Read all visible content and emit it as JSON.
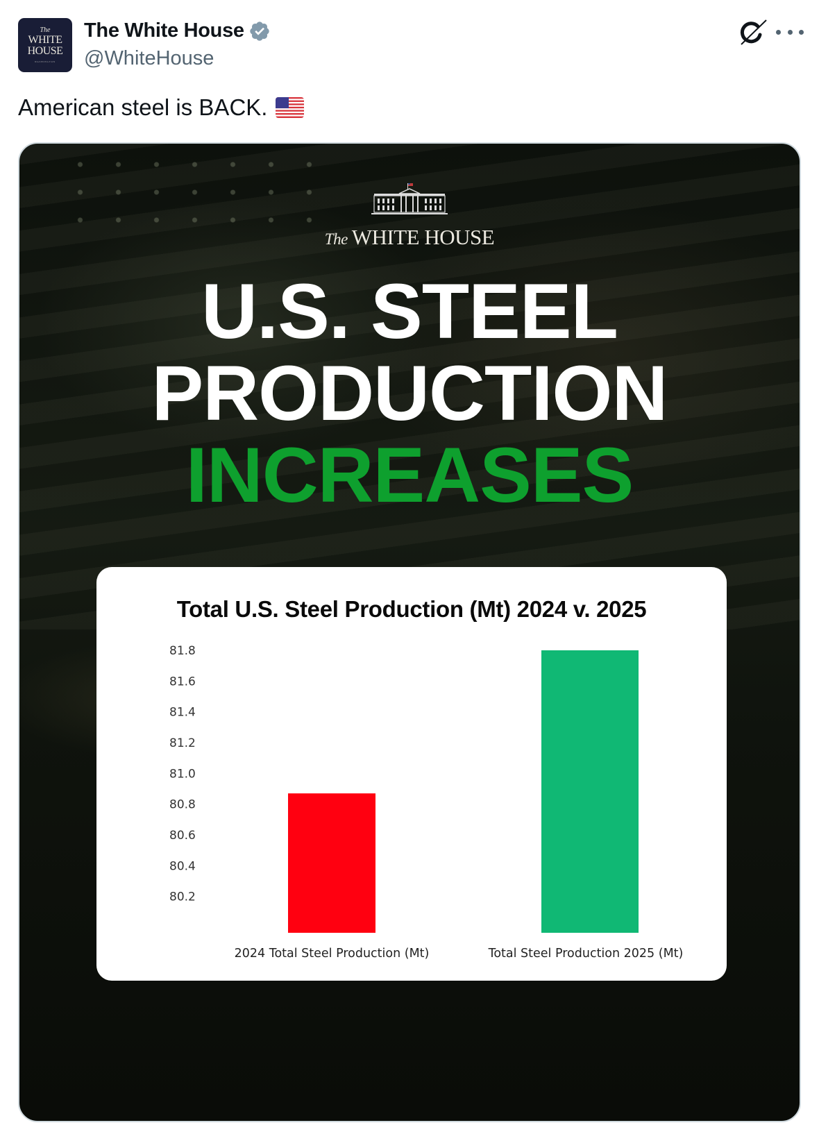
{
  "post": {
    "author_name": "The White House",
    "handle": "@WhiteHouse",
    "verified": true,
    "avatar": {
      "line1": "The",
      "line2": "WHITE",
      "line3": "HOUSE",
      "line4": "WASHINGTON"
    },
    "text": "American steel is BACK.",
    "emoji": "us-flag",
    "actions": {
      "grok_icon": "grok-icon",
      "more_icon": "more-dots-icon"
    }
  },
  "media": {
    "logo": {
      "prefix": "The",
      "name": "WHITE HOUSE"
    },
    "headline": {
      "line1": "U.S. STEEL",
      "line2": "PRODUCTION",
      "line3": "INCREASES"
    },
    "colors": {
      "accent_green": "#0ea02e",
      "bar_2024": "#ff0010",
      "bar_2025": "#10b874"
    }
  },
  "chart_data": {
    "type": "bar",
    "title": "Total U.S. Steel Production (Mt) 2024 v. 2025",
    "categories": [
      "2024 Total Steel Production (Mt)",
      "Total Steel Production 2025 (Mt)"
    ],
    "values": [
      80.87,
      81.8
    ],
    "colors": [
      "#ff0010",
      "#10b874"
    ],
    "xlabel": "",
    "ylabel": "",
    "yticks": [
      "81.8",
      "81.6",
      "81.4",
      "81.2",
      "81.0",
      "80.8",
      "80.6",
      "80.4",
      "80.2"
    ],
    "ylim": [
      80.0,
      81.8
    ],
    "grid": false,
    "legend": "none"
  }
}
